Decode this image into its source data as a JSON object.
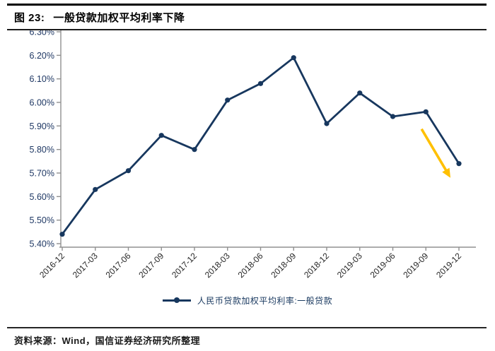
{
  "header": {
    "figure_label": "图 23:",
    "title": "一般贷款加权平均利率下降"
  },
  "legend": {
    "label": "人民币贷款加权平均利率:一般贷款"
  },
  "footer": {
    "source": "资料来源：Wind，国信证券经济研究所整理"
  },
  "chart_data": {
    "type": "line",
    "title": "一般贷款加权平均利率下降",
    "categories": [
      "2016-12",
      "2017-03",
      "2017-06",
      "2017-09",
      "2017-12",
      "2018-03",
      "2018-06",
      "2018-09",
      "2018-12",
      "2019-03",
      "2019-06",
      "2019-09",
      "2019-12"
    ],
    "series": [
      {
        "name": "人民币贷款加权平均利率:一般贷款",
        "values": [
          5.44,
          5.63,
          5.71,
          5.86,
          5.8,
          6.01,
          6.08,
          6.19,
          5.91,
          6.04,
          5.94,
          5.96,
          5.74
        ]
      }
    ],
    "y_axis": {
      "min": 5.4,
      "max": 6.3,
      "step": 0.1,
      "tick_labels_desc": [
        "6.30%",
        "6.20%",
        "6.10%",
        "6.00%",
        "5.90%",
        "5.80%",
        "5.70%",
        "5.60%",
        "5.50%",
        "5.40%"
      ]
    },
    "ylim": [
      5.4,
      6.3
    ],
    "grid": false,
    "legend_position": "bottom",
    "annotation_arrow": {
      "type": "down-trend-arrow",
      "from_index": 10.87,
      "from_value": 5.887,
      "to_index": 11.7,
      "to_value": 5.69
    },
    "colors": {
      "series": "#17375E",
      "arrow": "#FFC000",
      "axis": "#909090",
      "y_label": "#1F3864",
      "x_label": "#262626"
    }
  }
}
